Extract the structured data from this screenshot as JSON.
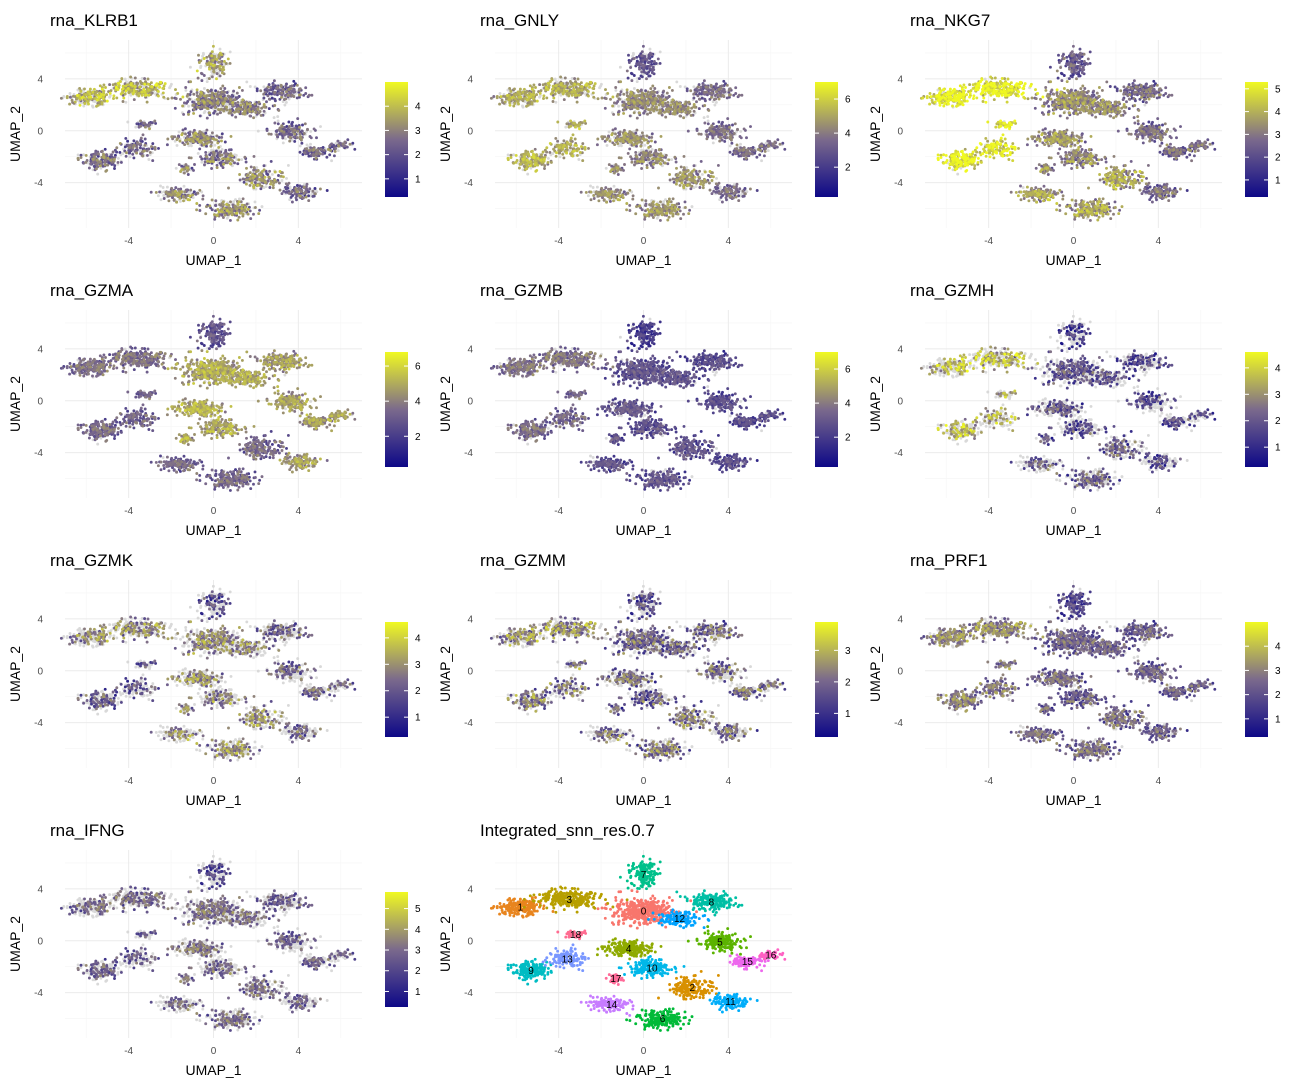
{
  "figure": {
    "colors": {
      "background": "#ffffff",
      "grid_major": "#ebebeb",
      "grid_minor": "#f5f5f5",
      "na_point": "#d9d9d9",
      "gradient_low": "#0d0887",
      "gradient_mid": "#7b6a8c",
      "gradient_high": "#f0f921"
    }
  },
  "chart_data": [
    {
      "type": "scatter",
      "title": "rna_KLRB1",
      "xlabel": "UMAP_1",
      "ylabel": "UMAP_2",
      "xlim": [
        -7,
        7
      ],
      "ylim": [
        -7.5,
        7
      ],
      "x_ticks": [
        "-4",
        "0",
        "4"
      ],
      "x_tick_values": [
        -4,
        0,
        4
      ],
      "y_ticks": [
        "4",
        "0",
        "-4"
      ],
      "y_tick_values": [
        4,
        0,
        -4
      ],
      "grid": true,
      "legend": "right",
      "colorbar_max": 5.0,
      "colorbar_ticks": [
        "4",
        "3",
        "2",
        "1"
      ],
      "colorbar_tick_values": [
        4,
        3,
        2,
        1
      ],
      "expression_profile": {
        "overall": 2.6,
        "left_top": 3.6,
        "left_band": 2.3,
        "center_top": 3.2,
        "center": 2.6,
        "right": 2.2,
        "bottom": 2.8,
        "zero_fraction": 0.3
      }
    },
    {
      "type": "scatter",
      "title": "rna_GNLY",
      "xlabel": "UMAP_1",
      "ylabel": "UMAP_2",
      "xlim": [
        -7,
        7
      ],
      "ylim": [
        -7.5,
        7
      ],
      "x_ticks": [
        "-4",
        "0",
        "4"
      ],
      "x_tick_values": [
        -4,
        0,
        4
      ],
      "y_ticks": [
        "4",
        "0",
        "-4"
      ],
      "y_tick_values": [
        4,
        0,
        -4
      ],
      "grid": true,
      "legend": "right",
      "colorbar_max": 7.0,
      "colorbar_ticks": [
        "6",
        "4",
        "2"
      ],
      "colorbar_tick_values": [
        6,
        4,
        2
      ],
      "expression_profile": {
        "overall": 4.0,
        "left_top": 4.8,
        "left_band": 5.0,
        "center_top": 2.5,
        "center": 4.0,
        "right": 3.3,
        "bottom": 4.2,
        "zero_fraction": 0.25
      }
    },
    {
      "type": "scatter",
      "title": "rna_NKG7",
      "xlabel": "UMAP_1",
      "ylabel": "UMAP_2",
      "xlim": [
        -7,
        7
      ],
      "ylim": [
        -7.5,
        7
      ],
      "x_ticks": [
        "-4",
        "0",
        "4"
      ],
      "x_tick_values": [
        -4,
        0,
        4
      ],
      "y_ticks": [
        "4",
        "0",
        "-4"
      ],
      "y_tick_values": [
        4,
        0,
        -4
      ],
      "grid": true,
      "legend": "right",
      "colorbar_max": 5.3,
      "colorbar_ticks": [
        "5",
        "4",
        "3",
        "2",
        "1"
      ],
      "colorbar_tick_values": [
        5,
        4,
        3,
        2,
        1
      ],
      "expression_profile": {
        "overall": 3.2,
        "left_top": 4.8,
        "left_band": 4.8,
        "center_top": 2.0,
        "center": 3.0,
        "right": 2.4,
        "bottom": 3.4,
        "zero_fraction": 0.05
      }
    },
    {
      "type": "scatter",
      "title": "rna_GZMA",
      "xlabel": "UMAP_1",
      "ylabel": "UMAP_2",
      "xlim": [
        -7,
        7
      ],
      "ylim": [
        -7.5,
        7
      ],
      "x_ticks": [
        "-4",
        "0",
        "4"
      ],
      "x_tick_values": [
        -4,
        0,
        4
      ],
      "y_ticks": [
        "4",
        "0",
        "-4"
      ],
      "y_tick_values": [
        4,
        0,
        -4
      ],
      "grid": true,
      "legend": "right",
      "colorbar_max": 6.8,
      "colorbar_ticks": [
        "6",
        "4",
        "2"
      ],
      "colorbar_tick_values": [
        6,
        4,
        2
      ],
      "expression_profile": {
        "overall": 3.6,
        "left_top": 3.2,
        "left_band": 3.0,
        "center_top": 2.4,
        "center": 4.6,
        "right": 4.4,
        "bottom": 3.0,
        "zero_fraction": 0.05
      }
    },
    {
      "type": "scatter",
      "title": "rna_GZMB",
      "xlabel": "UMAP_1",
      "ylabel": "UMAP_2",
      "xlim": [
        -7,
        7
      ],
      "ylim": [
        -7.5,
        7
      ],
      "x_ticks": [
        "-4",
        "0",
        "4"
      ],
      "x_tick_values": [
        -4,
        0,
        4
      ],
      "y_ticks": [
        "4",
        "0",
        "-4"
      ],
      "y_tick_values": [
        4,
        0,
        -4
      ],
      "grid": true,
      "legend": "right",
      "colorbar_max": 7.0,
      "colorbar_ticks": [
        "6",
        "4",
        "2"
      ],
      "colorbar_tick_values": [
        6,
        4,
        2
      ],
      "expression_profile": {
        "overall": 2.6,
        "left_top": 3.4,
        "left_band": 3.2,
        "center_top": 1.6,
        "center": 2.4,
        "right": 2.2,
        "bottom": 2.4,
        "zero_fraction": 0.12
      }
    },
    {
      "type": "scatter",
      "title": "rna_GZMH",
      "xlabel": "UMAP_1",
      "ylabel": "UMAP_2",
      "xlim": [
        -7,
        7
      ],
      "ylim": [
        -7.5,
        7
      ],
      "x_ticks": [
        "-4",
        "0",
        "4"
      ],
      "x_tick_values": [
        -4,
        0,
        4
      ],
      "y_ticks": [
        "4",
        "0",
        "-4"
      ],
      "y_tick_values": [
        4,
        0,
        -4
      ],
      "grid": true,
      "legend": "right",
      "colorbar_max": 4.6,
      "colorbar_ticks": [
        "4",
        "3",
        "2",
        "1"
      ],
      "colorbar_tick_values": [
        4,
        3,
        2,
        1
      ],
      "expression_profile": {
        "overall": 2.0,
        "left_top": 3.4,
        "left_band": 3.4,
        "center_top": 1.0,
        "center": 1.6,
        "right": 1.4,
        "bottom": 1.8,
        "zero_fraction": 0.55
      }
    },
    {
      "type": "scatter",
      "title": "rna_GZMK",
      "xlabel": "UMAP_1",
      "ylabel": "UMAP_2",
      "xlim": [
        -7,
        7
      ],
      "ylim": [
        -7.5,
        7
      ],
      "x_ticks": [
        "-4",
        "0",
        "4"
      ],
      "x_tick_values": [
        -4,
        0,
        4
      ],
      "y_ticks": [
        "4",
        "0",
        "-4"
      ],
      "y_tick_values": [
        4,
        0,
        -4
      ],
      "grid": true,
      "legend": "right",
      "colorbar_max": 4.6,
      "colorbar_ticks": [
        "4",
        "3",
        "2",
        "1"
      ],
      "colorbar_tick_values": [
        4,
        3,
        2,
        1
      ],
      "expression_profile": {
        "overall": 2.2,
        "left_top": 2.6,
        "left_band": 1.8,
        "center_top": 1.4,
        "center": 2.6,
        "right": 2.0,
        "bottom": 2.6,
        "zero_fraction": 0.55
      }
    },
    {
      "type": "scatter",
      "title": "rna_GZMM",
      "xlabel": "UMAP_1",
      "ylabel": "UMAP_2",
      "xlim": [
        -7,
        7
      ],
      "ylim": [
        -7.5,
        7
      ],
      "x_ticks": [
        "-4",
        "0",
        "4"
      ],
      "x_tick_values": [
        -4,
        0,
        4
      ],
      "y_ticks": [
        "4",
        "0",
        "-4"
      ],
      "y_tick_values": [
        4,
        0,
        -4
      ],
      "grid": true,
      "legend": "right",
      "colorbar_max": 3.9,
      "colorbar_ticks": [
        "3",
        "2",
        "1"
      ],
      "colorbar_tick_values": [
        3,
        2,
        1
      ],
      "expression_profile": {
        "overall": 1.8,
        "left_top": 2.2,
        "left_band": 2.0,
        "center_top": 1.2,
        "center": 1.6,
        "right": 1.8,
        "bottom": 1.8,
        "zero_fraction": 0.45
      }
    },
    {
      "type": "scatter",
      "title": "rna_PRF1",
      "xlabel": "UMAP_1",
      "ylabel": "UMAP_2",
      "xlim": [
        -7,
        7
      ],
      "ylim": [
        -7.5,
        7
      ],
      "x_ticks": [
        "-4",
        "0",
        "4"
      ],
      "x_tick_values": [
        -4,
        0,
        4
      ],
      "y_ticks": [
        "4",
        "0",
        "-4"
      ],
      "y_tick_values": [
        4,
        0,
        -4
      ],
      "grid": true,
      "legend": "right",
      "colorbar_max": 5.0,
      "colorbar_ticks": [
        "4",
        "3",
        "2",
        "1"
      ],
      "colorbar_tick_values": [
        4,
        3,
        2,
        1
      ],
      "expression_profile": {
        "overall": 2.2,
        "left_top": 2.8,
        "left_band": 2.6,
        "center_top": 1.4,
        "center": 2.0,
        "right": 2.0,
        "bottom": 2.2,
        "zero_fraction": 0.2
      }
    },
    {
      "type": "scatter",
      "title": "rna_IFNG",
      "xlabel": "UMAP_1",
      "ylabel": "UMAP_2",
      "xlim": [
        -7,
        7
      ],
      "ylim": [
        -7.5,
        7
      ],
      "x_ticks": [
        "-4",
        "0",
        "4"
      ],
      "x_tick_values": [
        -4,
        0,
        4
      ],
      "y_ticks": [
        "4",
        "0",
        "-4"
      ],
      "y_tick_values": [
        4,
        0,
        -4
      ],
      "grid": true,
      "legend": "right",
      "colorbar_max": 5.8,
      "colorbar_ticks": [
        "5",
        "4",
        "3",
        "2",
        "1"
      ],
      "colorbar_tick_values": [
        5,
        4,
        3,
        2,
        1
      ],
      "expression_profile": {
        "overall": 2.6,
        "left_top": 2.6,
        "left_band": 2.4,
        "center_top": 1.6,
        "center": 2.8,
        "right": 2.4,
        "bottom": 2.6,
        "zero_fraction": 0.55
      }
    },
    {
      "type": "scatter",
      "title": "Integrated_snn_res.0.7",
      "xlabel": "UMAP_1",
      "ylabel": "UMAP_2",
      "xlim": [
        -7,
        7
      ],
      "ylim": [
        -7.5,
        7
      ],
      "x_ticks": [
        "-4",
        "0",
        "4"
      ],
      "x_tick_values": [
        -4,
        0,
        4
      ],
      "y_ticks": [
        "4",
        "0",
        "-4"
      ],
      "y_tick_values": [
        4,
        0,
        -4
      ],
      "grid": true,
      "legend": "none",
      "clusters": [
        {
          "id": "0",
          "color": "#F8766D",
          "center": [
            0.0,
            2.3
          ]
        },
        {
          "id": "1",
          "color": "#E8851E",
          "center": [
            -5.8,
            2.6
          ]
        },
        {
          "id": "2",
          "color": "#D89000",
          "center": [
            2.3,
            -3.6
          ]
        },
        {
          "id": "3",
          "color": "#B79F00",
          "center": [
            -3.5,
            3.2
          ]
        },
        {
          "id": "4",
          "color": "#8FAA00",
          "center": [
            -0.7,
            -0.6
          ]
        },
        {
          "id": "5",
          "color": "#5BB300",
          "center": [
            3.6,
            -0.1
          ]
        },
        {
          "id": "6",
          "color": "#00BA38",
          "center": [
            0.9,
            -6.0
          ]
        },
        {
          "id": "7",
          "color": "#00C08B",
          "center": [
            0.0,
            5.1
          ]
        },
        {
          "id": "8",
          "color": "#00BFA5",
          "center": [
            3.2,
            3.0
          ]
        },
        {
          "id": "9",
          "color": "#00BCC3",
          "center": [
            -5.3,
            -2.3
          ]
        },
        {
          "id": "10",
          "color": "#00B7E9",
          "center": [
            0.4,
            -2.1
          ]
        },
        {
          "id": "11",
          "color": "#00ADFA",
          "center": [
            4.1,
            -4.7
          ]
        },
        {
          "id": "12",
          "color": "#00A3FF",
          "center": [
            1.7,
            1.7
          ]
        },
        {
          "id": "13",
          "color": "#7997FF",
          "center": [
            -3.6,
            -1.4
          ]
        },
        {
          "id": "14",
          "color": "#C77CFF",
          "center": [
            -1.5,
            -4.9
          ]
        },
        {
          "id": "15",
          "color": "#ED68ED",
          "center": [
            4.9,
            -1.6
          ]
        },
        {
          "id": "16",
          "color": "#FF61C3",
          "center": [
            6.0,
            -1.1
          ]
        },
        {
          "id": "17",
          "color": "#FF6A98",
          "center": [
            -1.3,
            -2.9
          ]
        },
        {
          "id": "18",
          "color": "#FF6C91",
          "center": [
            -3.2,
            0.5
          ]
        }
      ]
    }
  ]
}
